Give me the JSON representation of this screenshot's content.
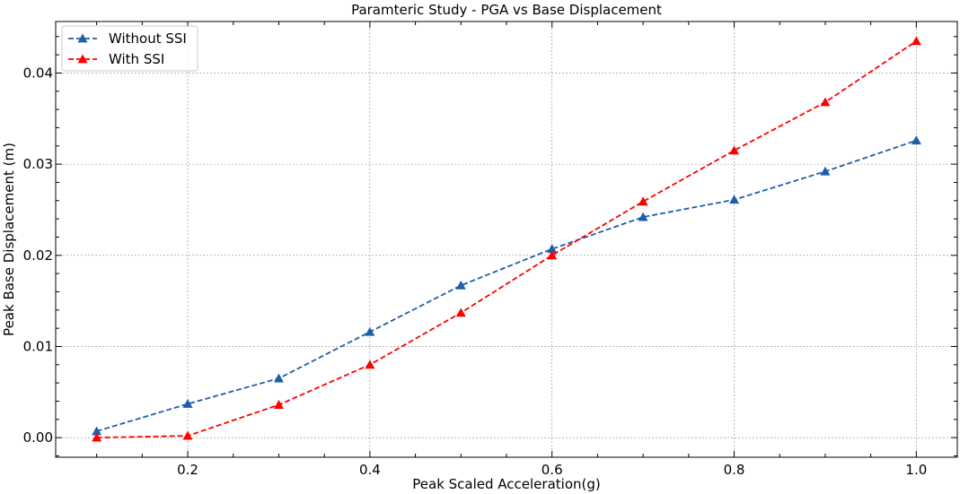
{
  "chart_data": {
    "type": "line",
    "title": "Paramteric Study - PGA vs Base Displacement",
    "xlabel": "Peak Scaled Acceleration(g)",
    "ylabel": "Peak Base Displacement (m)",
    "x": [
      0.1,
      0.2,
      0.3,
      0.4,
      0.5,
      0.6,
      0.7,
      0.8,
      0.9,
      1.0
    ],
    "xlim": [
      0.055,
      1.045
    ],
    "ylim": [
      -0.00215,
      0.04565
    ],
    "xticks": [
      0.2,
      0.4,
      0.6,
      0.8,
      1.0
    ],
    "xtick_labels": [
      "0.2",
      "0.4",
      "0.6",
      "0.8",
      "1.0"
    ],
    "yticks": [
      0.0,
      0.01,
      0.02,
      0.03,
      0.04
    ],
    "ytick_labels": [
      "0.00",
      "0.01",
      "0.02",
      "0.03",
      "0.04"
    ],
    "grid": true,
    "legend_position": "upper-left",
    "series": [
      {
        "name": "Without SSI",
        "color": "#1f5fa8",
        "marker": "triangle",
        "line_style": "dashed",
        "values": [
          0.0007,
          0.0037,
          0.0065,
          0.0116,
          0.0167,
          0.0207,
          0.0242,
          0.0261,
          0.0292,
          0.0326
        ]
      },
      {
        "name": "With SSI",
        "color": "#ff0000",
        "marker": "triangle",
        "line_style": "dashed",
        "values": [
          0.0,
          0.0002,
          0.0036,
          0.008,
          0.0137,
          0.02,
          0.0259,
          0.0315,
          0.0368,
          0.0435
        ]
      }
    ]
  }
}
